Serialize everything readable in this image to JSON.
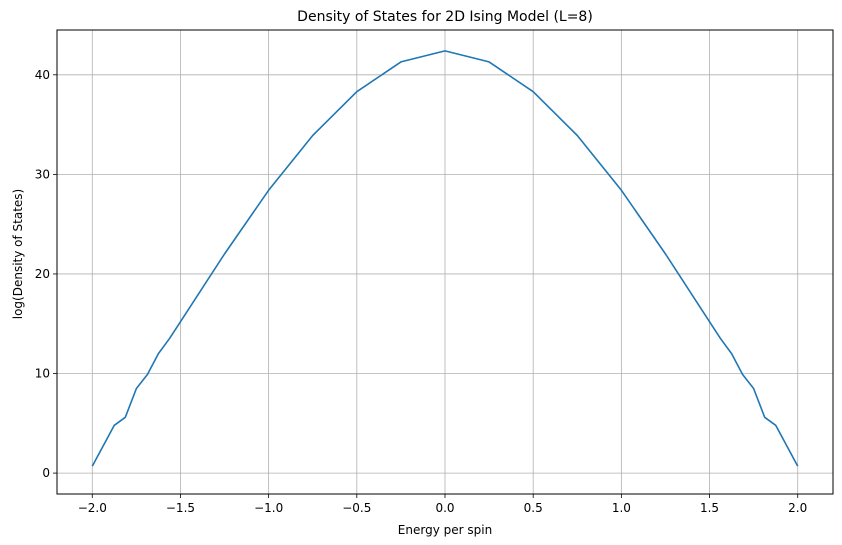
{
  "chart_data": {
    "type": "line",
    "title": "Density of States for 2D Ising Model (L=8)",
    "xlabel": "Energy per spin",
    "ylabel": "log(Density of States)",
    "xlim": [
      -2.2,
      2.2
    ],
    "ylim": [
      -2.1,
      44.5
    ],
    "grid": true,
    "x_ticks": [
      -2.0,
      -1.5,
      -1.0,
      -0.5,
      0.0,
      0.5,
      1.0,
      1.5,
      2.0
    ],
    "x_tick_labels": [
      "−2.0",
      "−1.5",
      "−1.0",
      "−0.5",
      "0.0",
      "0.5",
      "1.0",
      "1.5",
      "2.0"
    ],
    "y_ticks": [
      0,
      10,
      20,
      30,
      40
    ],
    "y_tick_labels": [
      "0",
      "10",
      "20",
      "30",
      "40"
    ],
    "series": [
      {
        "color": "#1f77b4",
        "x": [
          -2.0,
          -1.875,
          -1.8125,
          -1.75,
          -1.6875,
          -1.625,
          -1.5625,
          -1.5,
          -1.25,
          -1.0,
          -0.75,
          -0.5,
          -0.25,
          0.0,
          0.25,
          0.5,
          0.75,
          1.0,
          1.25,
          1.5,
          1.5625,
          1.625,
          1.6875,
          1.75,
          1.8125,
          1.875,
          2.0
        ],
        "y": [
          0.7,
          4.8,
          5.6,
          8.5,
          9.9,
          12.0,
          13.5,
          15.2,
          22.0,
          28.4,
          33.9,
          38.3,
          41.3,
          42.4,
          41.3,
          38.3,
          33.9,
          28.4,
          22.0,
          15.2,
          13.5,
          12.0,
          9.9,
          8.5,
          5.6,
          4.8,
          0.7
        ]
      }
    ]
  }
}
